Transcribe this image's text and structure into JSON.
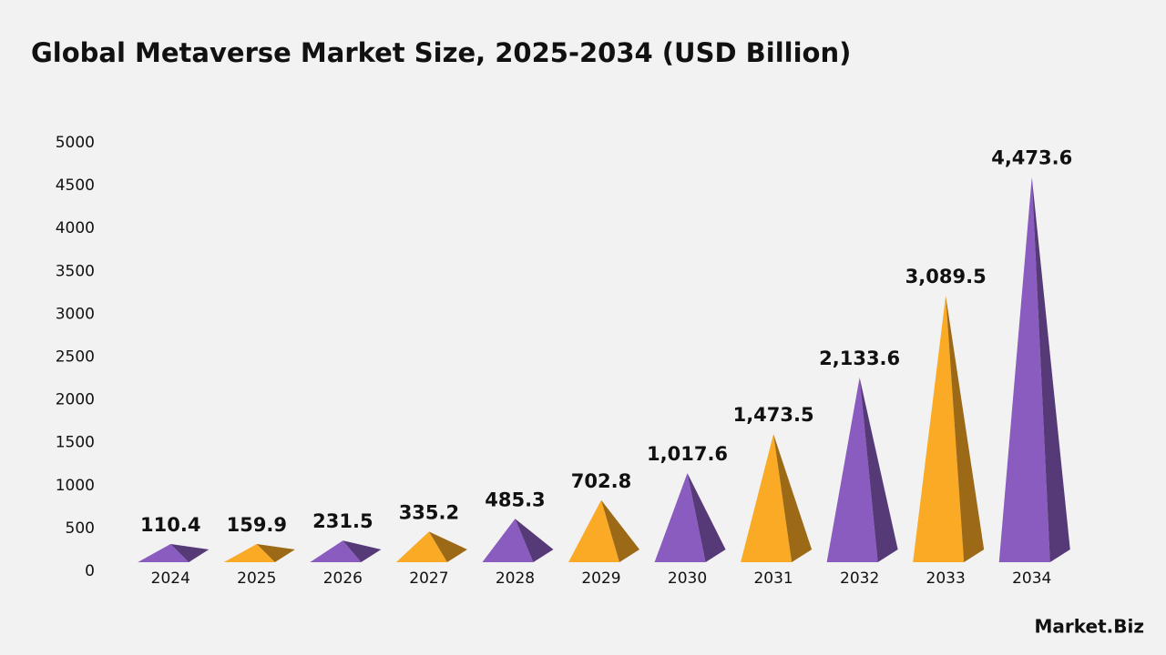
{
  "chart_data": {
    "type": "pyramid",
    "title": "Global Metaverse Market Size, 2025-2034 (USD Billion)",
    "categories": [
      "2024",
      "2025",
      "2026",
      "2027",
      "2028",
      "2029",
      "2030",
      "2031",
      "2032",
      "2033",
      "2034"
    ],
    "values": [
      110.4,
      159.9,
      231.5,
      335.2,
      485.3,
      702.8,
      1017.6,
      1473.5,
      2133.6,
      3089.5,
      4473.6
    ],
    "value_labels": [
      "110.4",
      "159.9",
      "231.5",
      "335.2",
      "485.3",
      "702.8",
      "1,017.6",
      "1,473.5",
      "2,133.6",
      "3,089.5",
      "4,473.6"
    ],
    "colors": [
      "#8a5cc0",
      "#fbaa25",
      "#8a5cc0",
      "#fbaa25",
      "#8a5cc0",
      "#fbaa25",
      "#8a5cc0",
      "#fbaa25",
      "#8a5cc0",
      "#fbaa25",
      "#8a5cc0"
    ],
    "ylim": [
      0,
      5000
    ],
    "yticks": [
      0,
      500,
      1000,
      1500,
      2000,
      2500,
      3000,
      3500,
      4000,
      4500,
      5000
    ],
    "grid": false,
    "logo": "Market.Biz"
  }
}
